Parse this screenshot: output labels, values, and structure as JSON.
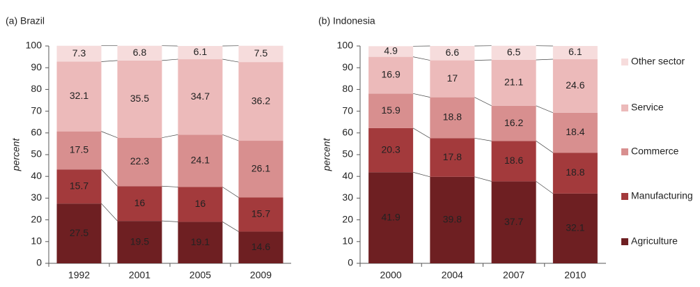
{
  "chart_data": [
    {
      "type": "stacked-bar",
      "title": "(a) Brazil",
      "y_label": "percent",
      "categories": [
        "1992",
        "2001",
        "2005",
        "2009"
      ],
      "ylim": [
        0,
        100
      ],
      "yticks": [
        0,
        10,
        20,
        30,
        40,
        50,
        60,
        70,
        80,
        90,
        100
      ],
      "series": [
        {
          "color": "#6e1f22",
          "values": [
            27.5,
            19.5,
            19.1,
            14.6
          ]
        },
        {
          "color": "#a33a3c",
          "values": [
            15.7,
            16,
            16,
            15.7
          ]
        },
        {
          "color": "#d88f8f",
          "values": [
            17.5,
            22.3,
            24.1,
            26.1
          ]
        },
        {
          "color": "#ecbaba",
          "values": [
            32.1,
            35.5,
            34.7,
            36.2
          ]
        },
        {
          "color": "#f6dcdc",
          "values": [
            7.3,
            6.8,
            6.1,
            7.5
          ]
        }
      ]
    },
    {
      "type": "stacked-bar",
      "title": "(b) Indonesia",
      "y_label": "percent",
      "categories": [
        "2000",
        "2004",
        "2007",
        "2010"
      ],
      "ylim": [
        0,
        100
      ],
      "yticks": [
        0,
        10,
        20,
        30,
        40,
        50,
        60,
        70,
        80,
        90,
        100
      ],
      "series": [
        {
          "name": "Agriculture",
          "color": "#6e1f22",
          "values": [
            41.9,
            39.8,
            37.7,
            32.1
          ]
        },
        {
          "name": "Manufacturing",
          "color": "#a33a3c",
          "values": [
            20.3,
            17.8,
            18.6,
            18.8
          ]
        },
        {
          "name": "Commerce",
          "color": "#d88f8f",
          "values": [
            15.9,
            18.8,
            16.2,
            18.4
          ]
        },
        {
          "name": "Service",
          "color": "#ecbaba",
          "values": [
            16.9,
            17,
            21.1,
            24.6
          ]
        },
        {
          "name": "Other sector",
          "color": "#f6dcdc",
          "values": [
            4.9,
            6.6,
            6.5,
            6.1
          ]
        }
      ]
    }
  ]
}
